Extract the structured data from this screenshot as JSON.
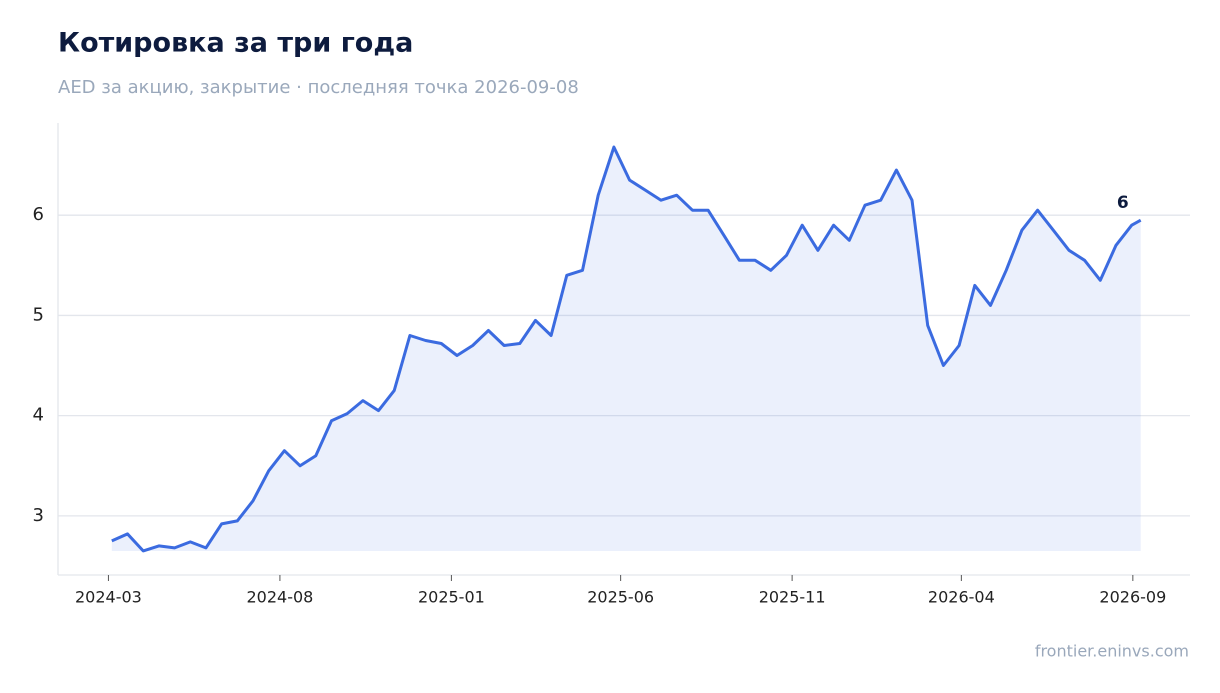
{
  "chart_data": {
    "type": "line",
    "title": "Котировка за три года",
    "subtitle": "AED за акцию, закрытие · последняя точка 2026-09-08",
    "source": "frontier.eninvs.com",
    "annotation": "6",
    "x": [
      "2024-03-04",
      "2024-03-18",
      "2024-04-01",
      "2024-04-15",
      "2024-04-29",
      "2024-05-13",
      "2024-05-27",
      "2024-06-10",
      "2024-06-24",
      "2024-07-08",
      "2024-07-22",
      "2024-08-05",
      "2024-08-19",
      "2024-09-02",
      "2024-09-16",
      "2024-09-30",
      "2024-10-14",
      "2024-10-28",
      "2024-11-11",
      "2024-11-25",
      "2024-12-09",
      "2024-12-23",
      "2025-01-06",
      "2025-01-20",
      "2025-02-03",
      "2025-02-17",
      "2025-03-03",
      "2025-03-17",
      "2025-03-31",
      "2025-04-14",
      "2025-04-28",
      "2025-05-12",
      "2025-05-26",
      "2025-06-09",
      "2025-06-23",
      "2025-07-07",
      "2025-07-21",
      "2025-08-04",
      "2025-08-18",
      "2025-09-01",
      "2025-09-15",
      "2025-09-29",
      "2025-10-13",
      "2025-10-27",
      "2025-11-10",
      "2025-11-24",
      "2025-12-08",
      "2025-12-22",
      "2026-01-05",
      "2026-01-19",
      "2026-02-02",
      "2026-02-16",
      "2026-03-02",
      "2026-03-16",
      "2026-03-30",
      "2026-04-13",
      "2026-04-27",
      "2026-05-11",
      "2026-05-25",
      "2026-06-08",
      "2026-06-22",
      "2026-07-06",
      "2026-07-20",
      "2026-08-03",
      "2026-08-17",
      "2026-08-31",
      "2026-09-08"
    ],
    "series": [
      {
        "name": "AED",
        "color": "#3b6be0",
        "values": [
          2.75,
          2.82,
          2.65,
          2.7,
          2.68,
          2.74,
          2.68,
          2.92,
          2.95,
          3.15,
          3.45,
          3.65,
          3.5,
          3.6,
          3.95,
          4.02,
          4.15,
          4.05,
          4.25,
          4.8,
          4.75,
          4.72,
          4.6,
          4.7,
          4.85,
          4.7,
          4.72,
          4.95,
          4.8,
          5.4,
          5.45,
          6.2,
          6.68,
          6.35,
          6.25,
          6.15,
          6.2,
          6.05,
          6.05,
          5.8,
          5.55,
          5.55,
          5.45,
          5.6,
          5.9,
          5.65,
          5.9,
          5.75,
          6.1,
          6.15,
          6.45,
          6.15,
          4.9,
          4.5,
          4.7,
          5.3,
          5.1,
          5.45,
          5.85,
          6.05,
          5.85,
          5.65,
          5.55,
          5.35,
          5.7,
          5.9,
          5.95
        ]
      }
    ],
    "xlim": [
      "2024-01-16",
      "2026-10-22"
    ],
    "xticks": [
      {
        "value": "2024-03-01",
        "label": "2024-03"
      },
      {
        "value": "2024-08-01",
        "label": "2024-08"
      },
      {
        "value": "2025-01-01",
        "label": "2025-01"
      },
      {
        "value": "2025-06-01",
        "label": "2025-06"
      },
      {
        "value": "2025-11-01",
        "label": "2025-11"
      },
      {
        "value": "2026-04-01",
        "label": "2026-04"
      },
      {
        "value": "2026-09-01",
        "label": "2026-09"
      }
    ],
    "ylim": [
      2.41,
      6.92
    ],
    "yticks": [
      3,
      4,
      5,
      6
    ],
    "grid": true
  }
}
